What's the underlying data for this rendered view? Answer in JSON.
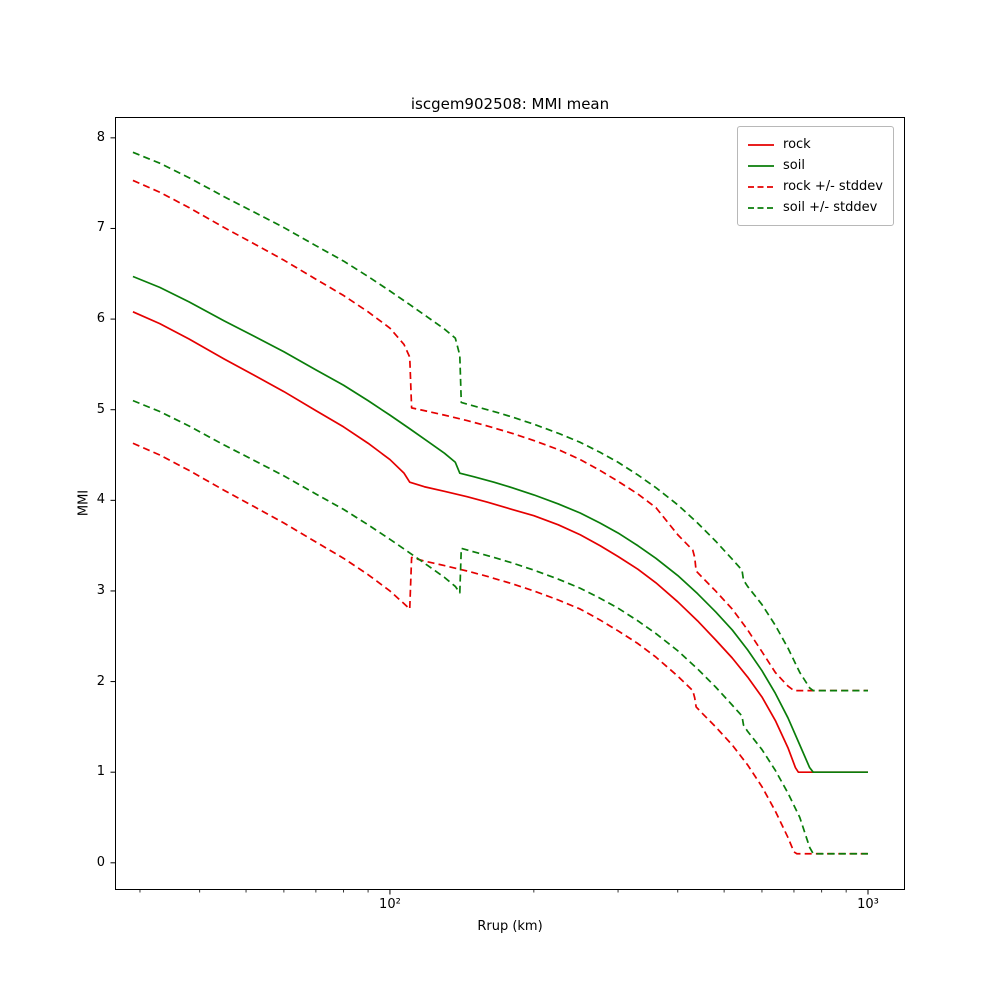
{
  "chart_data": {
    "type": "line",
    "title": "iscgem902508: MMI mean",
    "xlabel": "Rrup (km)",
    "ylabel": "MMI",
    "xscale": "log",
    "xlim": [
      26.6,
      1195
    ],
    "ylim": [
      -0.3,
      8.23
    ],
    "yticks": [
      0,
      1,
      2,
      3,
      4,
      5,
      6,
      7,
      8
    ],
    "xticks": [
      {
        "value": 100,
        "label": "10²"
      },
      {
        "value": 1000,
        "label": "10³"
      }
    ],
    "x_minor_ticks": [
      30,
      40,
      50,
      60,
      70,
      80,
      90,
      200,
      300,
      400,
      500,
      600,
      700,
      800,
      900
    ],
    "grid": false,
    "colors": {
      "rock": "#e50000",
      "soil": "#0a7d0a"
    },
    "legend": {
      "position": "upper right",
      "entries": [
        {
          "label": "rock",
          "color": "#e50000",
          "dash": "solid"
        },
        {
          "label": "soil",
          "color": "#0a7d0a",
          "dash": "solid"
        },
        {
          "label": "rock +/- stddev",
          "color": "#e50000",
          "dash": "dashed"
        },
        {
          "label": "soil +/- stddev",
          "color": "#0a7d0a",
          "dash": "dashed"
        }
      ]
    },
    "series": [
      {
        "name": "rock mean",
        "color": "#e50000",
        "dash": "solid",
        "points": [
          [
            29,
            6.08
          ],
          [
            33,
            5.95
          ],
          [
            38,
            5.78
          ],
          [
            45,
            5.56
          ],
          [
            52,
            5.38
          ],
          [
            60,
            5.2
          ],
          [
            70,
            4.99
          ],
          [
            80,
            4.81
          ],
          [
            90,
            4.63
          ],
          [
            100,
            4.45
          ],
          [
            107,
            4.3
          ],
          [
            110,
            4.2
          ],
          [
            118,
            4.15
          ],
          [
            130,
            4.1
          ],
          [
            145,
            4.04
          ],
          [
            160,
            3.98
          ],
          [
            180,
            3.9
          ],
          [
            200,
            3.83
          ],
          [
            225,
            3.73
          ],
          [
            250,
            3.62
          ],
          [
            275,
            3.5
          ],
          [
            300,
            3.38
          ],
          [
            330,
            3.24
          ],
          [
            360,
            3.09
          ],
          [
            400,
            2.88
          ],
          [
            440,
            2.67
          ],
          [
            480,
            2.46
          ],
          [
            520,
            2.26
          ],
          [
            560,
            2.05
          ],
          [
            600,
            1.83
          ],
          [
            640,
            1.57
          ],
          [
            680,
            1.27
          ],
          [
            705,
            1.05
          ],
          [
            715,
            1.0
          ],
          [
            760,
            1.0
          ],
          [
            1000,
            1.0
          ]
        ]
      },
      {
        "name": "soil mean",
        "color": "#0a7d0a",
        "dash": "solid",
        "points": [
          [
            29,
            6.47
          ],
          [
            33,
            6.35
          ],
          [
            38,
            6.19
          ],
          [
            45,
            5.98
          ],
          [
            52,
            5.81
          ],
          [
            60,
            5.64
          ],
          [
            70,
            5.44
          ],
          [
            80,
            5.27
          ],
          [
            90,
            5.1
          ],
          [
            100,
            4.94
          ],
          [
            110,
            4.79
          ],
          [
            120,
            4.65
          ],
          [
            130,
            4.52
          ],
          [
            137,
            4.42
          ],
          [
            140,
            4.3
          ],
          [
            150,
            4.26
          ],
          [
            165,
            4.2
          ],
          [
            180,
            4.14
          ],
          [
            200,
            4.06
          ],
          [
            225,
            3.96
          ],
          [
            250,
            3.86
          ],
          [
            275,
            3.75
          ],
          [
            300,
            3.64
          ],
          [
            330,
            3.5
          ],
          [
            360,
            3.36
          ],
          [
            400,
            3.17
          ],
          [
            440,
            2.97
          ],
          [
            480,
            2.77
          ],
          [
            520,
            2.57
          ],
          [
            560,
            2.35
          ],
          [
            600,
            2.12
          ],
          [
            640,
            1.87
          ],
          [
            680,
            1.6
          ],
          [
            720,
            1.3
          ],
          [
            755,
            1.05
          ],
          [
            768,
            1.0
          ],
          [
            1000,
            1.0
          ]
        ]
      },
      {
        "name": "rock mean + stddev",
        "color": "#e50000",
        "dash": "dashed",
        "points": [
          [
            29,
            7.53
          ],
          [
            33,
            7.4
          ],
          [
            38,
            7.23
          ],
          [
            45,
            7.01
          ],
          [
            52,
            6.83
          ],
          [
            60,
            6.65
          ],
          [
            70,
            6.44
          ],
          [
            80,
            6.26
          ],
          [
            90,
            6.08
          ],
          [
            100,
            5.9
          ],
          [
            107,
            5.72
          ],
          [
            110,
            5.58
          ],
          [
            111,
            5.02
          ],
          [
            118,
            4.99
          ],
          [
            130,
            4.94
          ],
          [
            145,
            4.88
          ],
          [
            160,
            4.82
          ],
          [
            180,
            4.74
          ],
          [
            200,
            4.66
          ],
          [
            225,
            4.56
          ],
          [
            250,
            4.45
          ],
          [
            275,
            4.33
          ],
          [
            300,
            4.21
          ],
          [
            330,
            4.07
          ],
          [
            360,
            3.92
          ],
          [
            400,
            3.62
          ],
          [
            430,
            3.45
          ],
          [
            434,
            3.37
          ],
          [
            437,
            3.22
          ],
          [
            450,
            3.15
          ],
          [
            480,
            3.0
          ],
          [
            520,
            2.8
          ],
          [
            560,
            2.57
          ],
          [
            600,
            2.33
          ],
          [
            640,
            2.1
          ],
          [
            680,
            1.95
          ],
          [
            700,
            1.9
          ],
          [
            1000,
            1.9
          ]
        ]
      },
      {
        "name": "rock mean - stddev",
        "color": "#e50000",
        "dash": "dashed",
        "points": [
          [
            29,
            4.63
          ],
          [
            33,
            4.5
          ],
          [
            38,
            4.33
          ],
          [
            45,
            4.11
          ],
          [
            52,
            3.93
          ],
          [
            60,
            3.75
          ],
          [
            70,
            3.54
          ],
          [
            80,
            3.36
          ],
          [
            90,
            3.18
          ],
          [
            100,
            3.0
          ],
          [
            107,
            2.86
          ],
          [
            110,
            2.8
          ],
          [
            111,
            3.37
          ],
          [
            118,
            3.33
          ],
          [
            130,
            3.28
          ],
          [
            145,
            3.22
          ],
          [
            160,
            3.16
          ],
          [
            180,
            3.08
          ],
          [
            200,
            3.0
          ],
          [
            225,
            2.9
          ],
          [
            250,
            2.8
          ],
          [
            275,
            2.68
          ],
          [
            300,
            2.56
          ],
          [
            330,
            2.42
          ],
          [
            360,
            2.27
          ],
          [
            400,
            2.06
          ],
          [
            430,
            1.9
          ],
          [
            434,
            1.82
          ],
          [
            437,
            1.72
          ],
          [
            450,
            1.65
          ],
          [
            480,
            1.5
          ],
          [
            520,
            1.3
          ],
          [
            560,
            1.08
          ],
          [
            600,
            0.84
          ],
          [
            640,
            0.57
          ],
          [
            680,
            0.28
          ],
          [
            700,
            0.12
          ],
          [
            710,
            0.1
          ],
          [
            1000,
            0.1
          ]
        ]
      },
      {
        "name": "soil mean + stddev",
        "color": "#0a7d0a",
        "dash": "dashed",
        "points": [
          [
            29,
            7.84
          ],
          [
            33,
            7.72
          ],
          [
            38,
            7.56
          ],
          [
            45,
            7.35
          ],
          [
            52,
            7.18
          ],
          [
            60,
            7.01
          ],
          [
            70,
            6.81
          ],
          [
            80,
            6.64
          ],
          [
            90,
            6.47
          ],
          [
            100,
            6.31
          ],
          [
            110,
            6.16
          ],
          [
            120,
            6.02
          ],
          [
            130,
            5.89
          ],
          [
            137,
            5.79
          ],
          [
            140,
            5.6
          ],
          [
            141,
            5.08
          ],
          [
            150,
            5.04
          ],
          [
            165,
            4.98
          ],
          [
            180,
            4.92
          ],
          [
            200,
            4.84
          ],
          [
            225,
            4.74
          ],
          [
            250,
            4.64
          ],
          [
            275,
            4.53
          ],
          [
            300,
            4.42
          ],
          [
            330,
            4.28
          ],
          [
            360,
            4.14
          ],
          [
            400,
            3.95
          ],
          [
            440,
            3.75
          ],
          [
            480,
            3.55
          ],
          [
            520,
            3.35
          ],
          [
            545,
            3.23
          ],
          [
            549,
            3.12
          ],
          [
            560,
            3.05
          ],
          [
            600,
            2.85
          ],
          [
            640,
            2.62
          ],
          [
            680,
            2.37
          ],
          [
            720,
            2.1
          ],
          [
            755,
            1.93
          ],
          [
            768,
            1.9
          ],
          [
            1000,
            1.9
          ]
        ]
      },
      {
        "name": "soil mean - stddev",
        "color": "#0a7d0a",
        "dash": "dashed",
        "points": [
          [
            29,
            5.1
          ],
          [
            33,
            4.98
          ],
          [
            38,
            4.82
          ],
          [
            45,
            4.61
          ],
          [
            52,
            4.44
          ],
          [
            60,
            4.27
          ],
          [
            70,
            4.07
          ],
          [
            80,
            3.9
          ],
          [
            90,
            3.73
          ],
          [
            100,
            3.57
          ],
          [
            110,
            3.42
          ],
          [
            120,
            3.28
          ],
          [
            130,
            3.15
          ],
          [
            137,
            3.05
          ],
          [
            140,
            2.98
          ],
          [
            141,
            3.47
          ],
          [
            150,
            3.43
          ],
          [
            165,
            3.37
          ],
          [
            180,
            3.31
          ],
          [
            200,
            3.23
          ],
          [
            225,
            3.13
          ],
          [
            250,
            3.03
          ],
          [
            275,
            2.92
          ],
          [
            300,
            2.81
          ],
          [
            330,
            2.67
          ],
          [
            360,
            2.53
          ],
          [
            400,
            2.34
          ],
          [
            440,
            2.14
          ],
          [
            480,
            1.94
          ],
          [
            520,
            1.74
          ],
          [
            545,
            1.62
          ],
          [
            549,
            1.52
          ],
          [
            560,
            1.45
          ],
          [
            600,
            1.25
          ],
          [
            640,
            1.02
          ],
          [
            680,
            0.77
          ],
          [
            720,
            0.5
          ],
          [
            755,
            0.17
          ],
          [
            768,
            0.1
          ],
          [
            1000,
            0.1
          ]
        ]
      }
    ]
  }
}
